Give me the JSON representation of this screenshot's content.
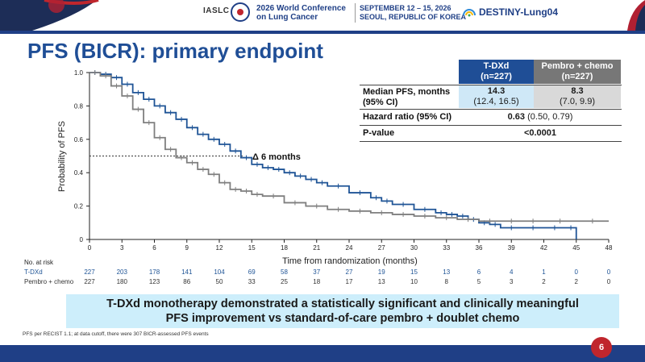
{
  "header": {
    "org": "IASLC",
    "conference_line1": "2026 World Conference",
    "conference_line2": "on Lung Cancer",
    "dates_line1": "SEPTEMBER 12 – 15, 2026",
    "dates_line2": "SEOUL, REPUBLIC OF KOREA",
    "trial": "DESTINY-Lung04"
  },
  "title": "PFS (BICR): primary endpoint",
  "colors": {
    "tdxd": "#1f5496",
    "pembro": "#7f7f7f",
    "accent": "#1f3f86",
    "badge": "#c0262d"
  },
  "table": {
    "col1_line1": "T-DXd",
    "col1_line2": "(n=227)",
    "col2_line1": "Pembro + chemo",
    "col2_line2": "(n=227)",
    "median_label_line1": "Median PFS, months",
    "median_label_line2": "(95% CI)",
    "median_tdxd": "14.3",
    "ci_tdxd": "(12.4, 16.5)",
    "median_pembro": "8.3",
    "ci_pembro": "(7.0, 9.9)",
    "hr_label": "Hazard ratio (95% CI)",
    "hr_value": "0.63",
    "hr_ci": "(0.50, 0.79)",
    "p_label": "P-value",
    "p_value": "<0.0001"
  },
  "chart_data": {
    "type": "line",
    "xlabel": "Time from randomization (months)",
    "ylabel": "Probability of PFS",
    "xlim": [
      0,
      48
    ],
    "ylim": [
      0,
      1.0
    ],
    "xticks": [
      0,
      3,
      6,
      9,
      12,
      15,
      18,
      21,
      24,
      27,
      30,
      33,
      36,
      39,
      42,
      45,
      48
    ],
    "yticks": [
      "0",
      "0.2",
      "0.4",
      "0.6",
      "0.8",
      "1.0"
    ],
    "annotation": "Δ 6 months",
    "series": [
      {
        "name": "T-DXd",
        "x": [
          0,
          1,
          2,
          3,
          4,
          5,
          6,
          7,
          8,
          9,
          10,
          11,
          12,
          13,
          14,
          15,
          16,
          17,
          18,
          19,
          20,
          21,
          22,
          24,
          26,
          27,
          28,
          30,
          32,
          33,
          34,
          35,
          36,
          37,
          38,
          40,
          42,
          44,
          45
        ],
        "y": [
          1.0,
          0.99,
          0.97,
          0.93,
          0.88,
          0.84,
          0.8,
          0.76,
          0.72,
          0.67,
          0.63,
          0.6,
          0.57,
          0.53,
          0.49,
          0.45,
          0.43,
          0.42,
          0.4,
          0.38,
          0.36,
          0.34,
          0.32,
          0.28,
          0.25,
          0.23,
          0.21,
          0.18,
          0.16,
          0.15,
          0.14,
          0.12,
          0.1,
          0.09,
          0.07,
          0.07,
          0.07,
          0.07,
          0.0
        ]
      },
      {
        "name": "Pembro + chemo",
        "x": [
          0,
          1,
          2,
          3,
          4,
          5,
          6,
          7,
          8,
          9,
          10,
          11,
          12,
          13,
          14,
          15,
          16,
          18,
          20,
          22,
          24,
          26,
          28,
          30,
          32,
          34,
          36,
          38,
          40,
          42,
          45,
          48
        ],
        "y": [
          1.0,
          0.98,
          0.92,
          0.86,
          0.78,
          0.7,
          0.61,
          0.54,
          0.49,
          0.46,
          0.42,
          0.39,
          0.34,
          0.3,
          0.29,
          0.27,
          0.26,
          0.22,
          0.2,
          0.18,
          0.17,
          0.16,
          0.15,
          0.14,
          0.13,
          0.12,
          0.11,
          0.11,
          0.11,
          0.11,
          0.11,
          0.11
        ]
      }
    ],
    "at_risk": {
      "title": "No. at risk",
      "rows": [
        {
          "label": "T-DXd",
          "values": [
            "227",
            "203",
            "178",
            "141",
            "104",
            "69",
            "58",
            "37",
            "27",
            "19",
            "15",
            "13",
            "6",
            "4",
            "1",
            "0",
            "0"
          ]
        },
        {
          "label": "Pembro + chemo",
          "values": [
            "227",
            "180",
            "123",
            "86",
            "50",
            "33",
            "25",
            "18",
            "17",
            "13",
            "10",
            "8",
            "5",
            "3",
            "2",
            "2",
            "0"
          ]
        }
      ]
    }
  },
  "conclusion_line1": "T-DXd monotherapy demonstrated a statistically significant and clinically meaningful",
  "conclusion_line2": "PFS improvement vs standard-of-care pembro + doublet chemo",
  "footnote": "PFS per RECIST 1.1; at data cutoff, there were 307 BICR-assessed PFS events",
  "page_number": "6"
}
